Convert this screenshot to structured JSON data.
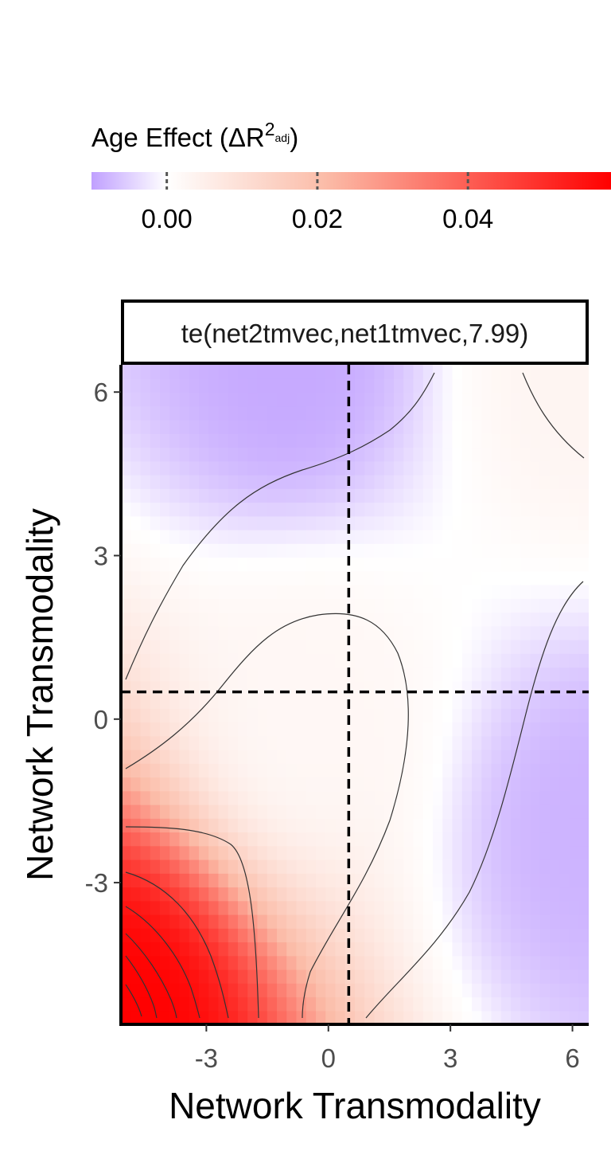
{
  "chart_data": {
    "type": "heatmap",
    "title": "",
    "facet_label": "te(net2tmvec,net1tmvec,7.99)",
    "xlabel": "Network Transmodality",
    "ylabel": "Network Transmodality",
    "xlim": [
      -5.1,
      6.4
    ],
    "ylim": [
      -5.6,
      6.5
    ],
    "x_ticks": [
      {
        "value": -3,
        "label": "-3"
      },
      {
        "value": 0,
        "label": "0"
      },
      {
        "value": 3,
        "label": "3"
      },
      {
        "value": 6,
        "label": "6"
      }
    ],
    "y_ticks": [
      {
        "value": -3,
        "label": "-3"
      },
      {
        "value": 0,
        "label": "0"
      },
      {
        "value": 3,
        "label": "3"
      },
      {
        "value": 6,
        "label": "6"
      }
    ],
    "legend": {
      "title_main": "Age Effect (ΔR",
      "title_sup": "2",
      "title_sub": "adj",
      "title_end": ")",
      "position": "top",
      "range": [
        -0.01,
        0.059
      ],
      "ticks": [
        {
          "value": 0.0,
          "label": "0.00"
        },
        {
          "value": 0.02,
          "label": "0.02"
        },
        {
          "value": 0.04,
          "label": "0.04"
        }
      ],
      "low_color": "#c0a0ff",
      "mid_color": "#ffffff",
      "high_color": "#ff0000"
    },
    "reference_lines": {
      "vertical_x": 0.5,
      "horizontal_y": 0.5
    },
    "surface_peaks": [
      {
        "x": -5.1,
        "y": -5.6,
        "value": 0.059
      },
      {
        "x": 6.4,
        "y": 6.4,
        "value": 0.004
      },
      {
        "x": -1.0,
        "y": 6.5,
        "value": -0.009
      },
      {
        "x": 6.4,
        "y": -2.0,
        "value": -0.008
      },
      {
        "x": -0.5,
        "y": 0.2,
        "value": 0.003
      }
    ]
  }
}
